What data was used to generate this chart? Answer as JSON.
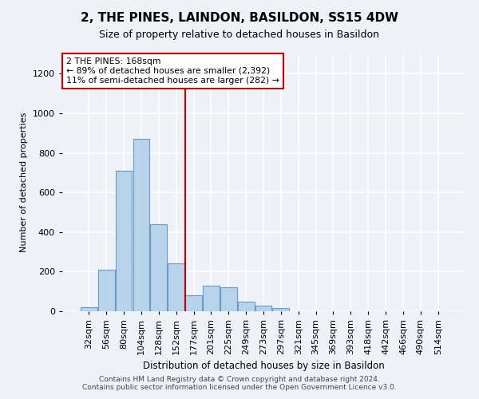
{
  "title": "2, THE PINES, LAINDON, BASILDON, SS15 4DW",
  "subtitle": "Size of property relative to detached houses in Basildon",
  "xlabel": "Distribution of detached houses by size in Basildon",
  "ylabel": "Number of detached properties",
  "categories": [
    "32sqm",
    "56sqm",
    "80sqm",
    "104sqm",
    "128sqm",
    "152sqm",
    "177sqm",
    "201sqm",
    "225sqm",
    "249sqm",
    "273sqm",
    "297sqm",
    "321sqm",
    "345sqm",
    "369sqm",
    "393sqm",
    "418sqm",
    "442sqm",
    "466sqm",
    "490sqm",
    "514sqm"
  ],
  "values": [
    20,
    210,
    710,
    870,
    440,
    240,
    80,
    130,
    120,
    50,
    30,
    15,
    0,
    0,
    0,
    0,
    0,
    0,
    0,
    0,
    0
  ],
  "bar_color": "#b8d4ea",
  "bar_edge_color": "#6699cc",
  "property_line_x": 5.5,
  "property_line_color": "#cc0000",
  "annotation_text": "2 THE PINES: 168sqm\n← 89% of detached houses are smaller (2,392)\n11% of semi-detached houses are larger (282) →",
  "annotation_box_color": "#ffffff",
  "annotation_box_edge_color": "#cc0000",
  "ylim": [
    0,
    1300
  ],
  "yticks": [
    0,
    200,
    400,
    600,
    800,
    1000,
    1200
  ],
  "background_color": "#eef2f8",
  "grid_color": "#ffffff",
  "footer_line1": "Contains HM Land Registry data © Crown copyright and database right 2024.",
  "footer_line2": "Contains public sector information licensed under the Open Government Licence v3.0."
}
